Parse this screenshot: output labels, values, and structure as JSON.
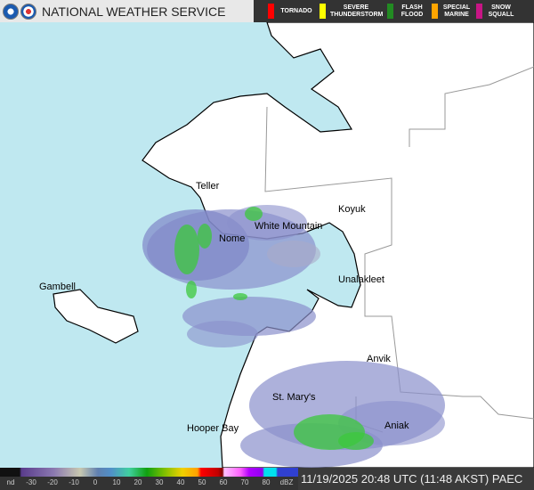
{
  "header": {
    "title": "NATIONAL WEATHER SERVICE",
    "logos": [
      "noaa-logo",
      "nws-logo"
    ]
  },
  "warnings": [
    {
      "label": "TORNADO",
      "color": "#ff0000"
    },
    {
      "label": "SEVERE THUNDERSTORM",
      "color": "#ffff00"
    },
    {
      "label": "FLASH FLOOD",
      "color": "#228b22"
    },
    {
      "label": "SPECIAL MARINE",
      "color": "#ffa500"
    },
    {
      "label": "SNOW SQUALL",
      "color": "#c71585"
    }
  ],
  "places": [
    "Teller",
    "Nome",
    "White Mountain",
    "Koyuk",
    "Unalakleet",
    "Gambell",
    "Anvik",
    "St. Mary's",
    "Hooper Bay",
    "Aniak"
  ],
  "legend": {
    "ticks": [
      "nd",
      "-30",
      "-20",
      "-10",
      "0",
      "10",
      "20",
      "30",
      "40",
      "50",
      "60",
      "70",
      "80",
      "dBZ"
    ]
  },
  "timestamp": "11/19/2025 20:48 UTC (11:48 AKST) PAEC",
  "colors": {
    "water": "#bfe8f0",
    "land": "#ffffff",
    "echo_light": "#8a90cc",
    "echo_green": "#3cc83c"
  }
}
